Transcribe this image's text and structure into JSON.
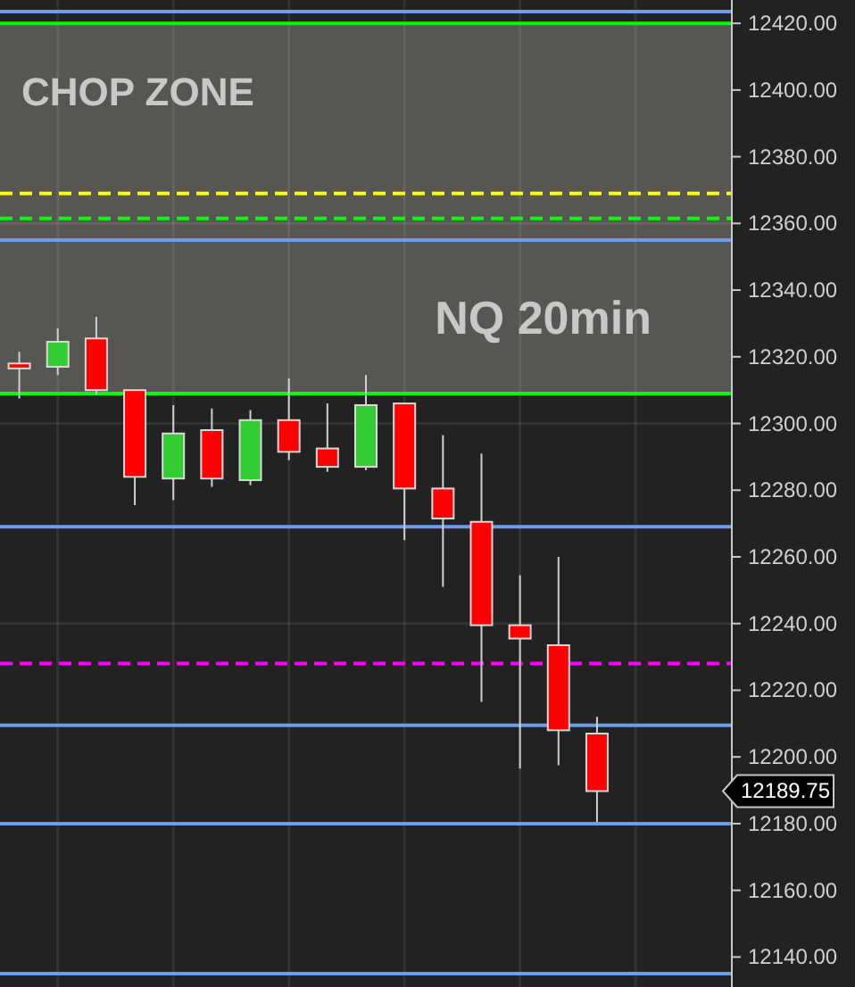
{
  "chart_data": {
    "type": "candlestick",
    "title": "NQ 20min",
    "categories": [
      null,
      null,
      null,
      null,
      null,
      null,
      null,
      null,
      null,
      null,
      null,
      null,
      null,
      null,
      null,
      null,
      null,
      null,
      null
    ],
    "ohlc": [
      [
        12318,
        12321.5,
        12307.5,
        12316.5
      ],
      [
        12317,
        12328.5,
        12314.5,
        12324.5
      ],
      [
        12325.5,
        12332,
        12308.5,
        12310
      ],
      [
        12310,
        12310,
        12275.5,
        12284
      ],
      [
        12283.5,
        12305.5,
        12277,
        12297
      ],
      [
        12298,
        12304.5,
        12281,
        12283.5
      ],
      [
        12283,
        12304,
        12281.5,
        12301
      ],
      [
        12301,
        12313.5,
        12289,
        12291.5
      ],
      [
        12292.5,
        12306,
        12285.5,
        12287
      ],
      [
        12287,
        12314.5,
        12286,
        12305.5
      ],
      [
        12306,
        12306,
        12265,
        12280.5
      ],
      [
        12280.5,
        12296.5,
        12251,
        12271.5
      ],
      [
        12270.5,
        12291,
        12216.5,
        12239.5
      ],
      [
        12239.5,
        12254.5,
        12196.5,
        12235.5
      ],
      [
        12233.5,
        12260,
        12197.5,
        12208
      ],
      [
        12207,
        12212,
        12180.5,
        12189.75
      ],
      null,
      null,
      null
    ],
    "colors": [
      "#ff0000",
      "#32cd32",
      "#ff0000",
      "#ff0000",
      "#32cd32",
      "#ff0000",
      "#32cd32",
      "#ff0000",
      "#ff0000",
      "#32cd32",
      "#ff0000",
      "#ff0000",
      "#ff0000",
      "#ff0000",
      "#ff0000",
      "#ff0000",
      null,
      null,
      null
    ],
    "ylim": [
      12131,
      12427
    ],
    "yticks": [
      {
        "value": 12140,
        "label": "12140.00"
      },
      {
        "value": 12160,
        "label": "12160.00"
      },
      {
        "value": 12180,
        "label": "12180.00"
      },
      {
        "value": 12200,
        "label": "12200.00"
      },
      {
        "value": 12220,
        "label": "12220.00"
      },
      {
        "value": 12240,
        "label": "12240.00"
      },
      {
        "value": 12260,
        "label": "12260.00"
      },
      {
        "value": 12280,
        "label": "12280.00"
      },
      {
        "value": 12300,
        "label": "12300.00"
      },
      {
        "value": 12320,
        "label": "12320.00"
      },
      {
        "value": 12340,
        "label": "12340.00"
      },
      {
        "value": 12360,
        "label": "12360.00"
      },
      {
        "value": 12380,
        "label": "12380.00"
      },
      {
        "value": 12400,
        "label": "12400.00"
      },
      {
        "value": 12420,
        "label": "12420.00"
      }
    ],
    "tick_labels": "y",
    "grid": true,
    "bands": [
      {
        "axis": "y",
        "from": 12309,
        "to": 12420,
        "label": "CHOP ZONE",
        "color": "#585652"
      }
    ],
    "ref_lines": [
      {
        "axis": "y",
        "value": 12423.5,
        "color": "#6b9bea",
        "line_style": "solid"
      },
      {
        "axis": "y",
        "value": 12420,
        "color": "#00ff00",
        "line_style": "solid"
      },
      {
        "axis": "y",
        "value": 12369,
        "color": "#ffff00",
        "line_style": "dashed"
      },
      {
        "axis": "y",
        "value": 12361.5,
        "color": "#00ff00",
        "line_style": "dashed"
      },
      {
        "axis": "y",
        "value": 12355,
        "color": "#6b9bea",
        "line_style": "solid"
      },
      {
        "axis": "y",
        "value": 12309,
        "color": "#00ff00",
        "line_style": "solid"
      },
      {
        "axis": "y",
        "value": 12269,
        "color": "#6b9bea",
        "line_style": "solid"
      },
      {
        "axis": "y",
        "value": 12228,
        "color": "#ff00ff",
        "line_style": "dashed"
      },
      {
        "axis": "y",
        "value": 12209.5,
        "color": "#6b9bea",
        "line_style": "solid"
      },
      {
        "axis": "y",
        "value": 12180,
        "color": "#6b9bea",
        "line_style": "solid"
      },
      {
        "axis": "y",
        "value": 12135,
        "color": "#6b9bea",
        "line_style": "solid"
      }
    ],
    "annotations": [
      "12189.75"
    ]
  }
}
